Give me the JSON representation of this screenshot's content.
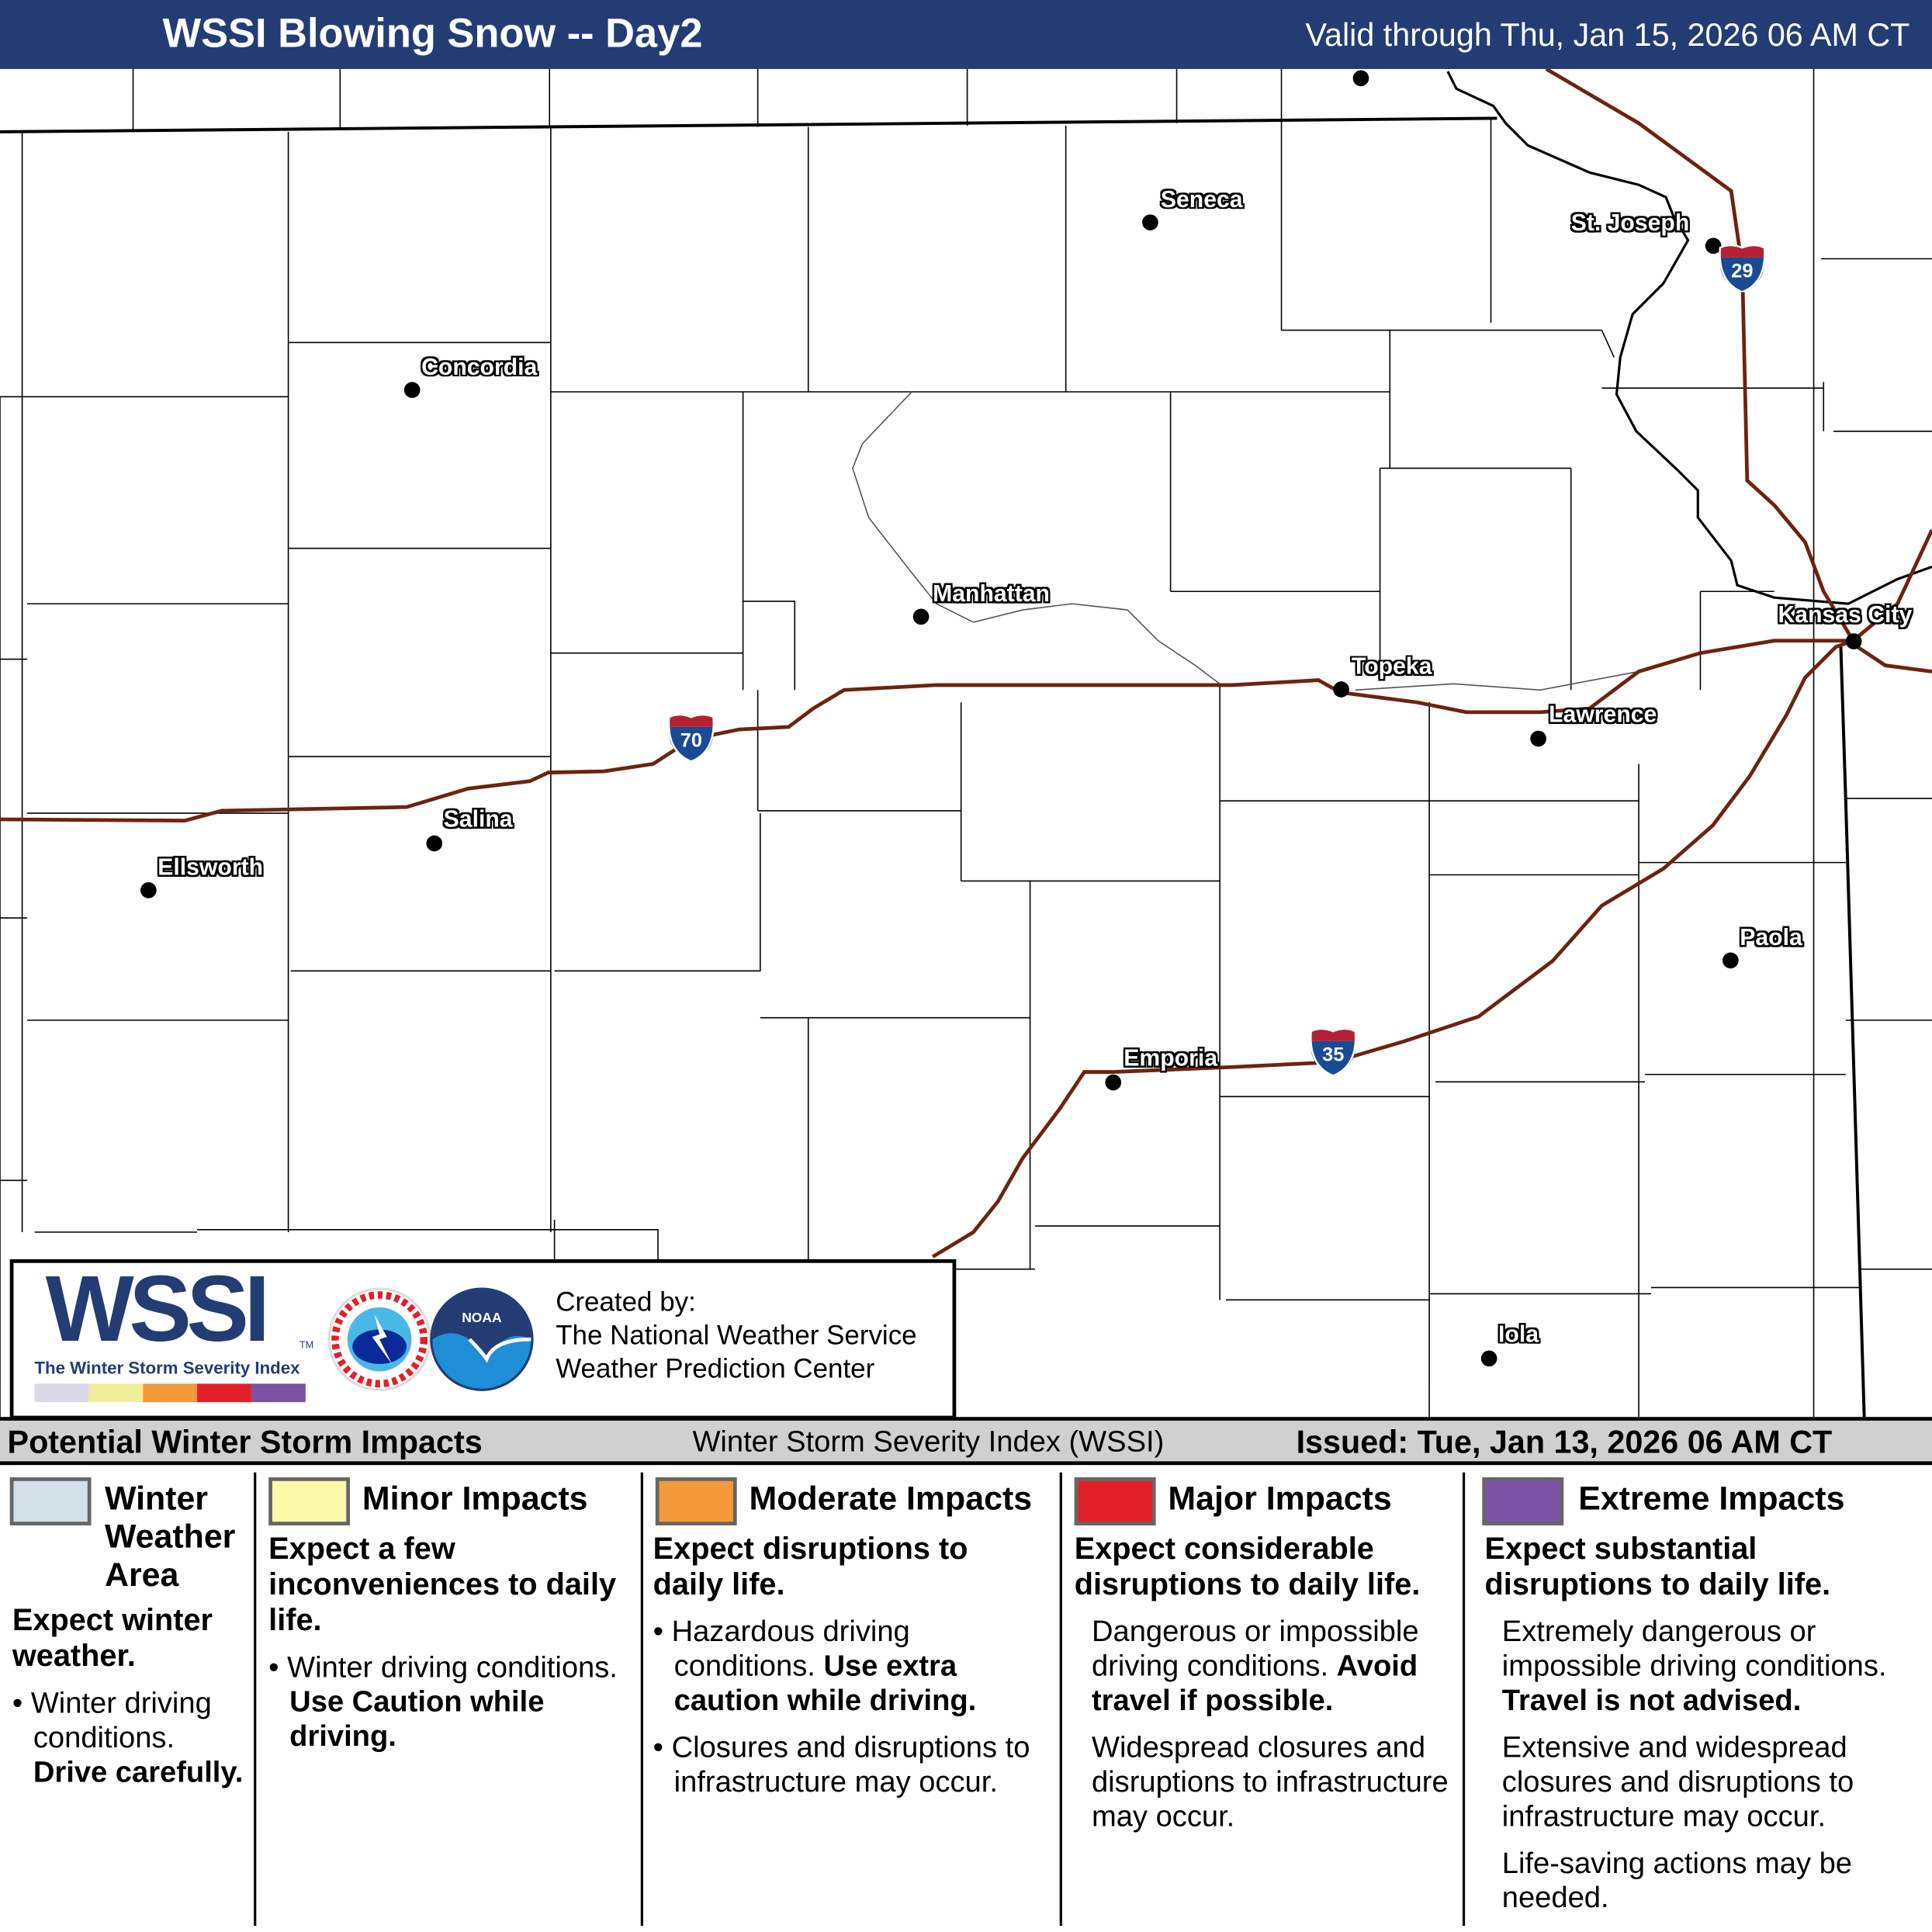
{
  "header": {
    "title": "WSSI Blowing Snow -- Day2",
    "valid": "Valid through Thu, Jan 15, 2026 06 AM CT"
  },
  "map": {
    "cities": [
      {
        "name": "Seneca"
      },
      {
        "name": "Concordia"
      },
      {
        "name": "Manhattan"
      },
      {
        "name": "Topeka"
      },
      {
        "name": "St. Joseph"
      },
      {
        "name": "Kansas City"
      },
      {
        "name": "Lawrence"
      },
      {
        "name": "Salina"
      },
      {
        "name": "Ellsworth"
      },
      {
        "name": "Paola"
      },
      {
        "name": "Emporia"
      },
      {
        "name": "Iola"
      }
    ],
    "interstates": [
      "70",
      "35",
      "29"
    ],
    "colors": {
      "highway": "#6b2410",
      "shield_blue": "#1a4a94",
      "shield_red": "#b22234"
    }
  },
  "logo": {
    "wordmark": "WSSI",
    "tagline": "The Winter Storm Severity Index",
    "created_by": "Created by:",
    "org1": "The National Weather Service",
    "org2": "Weather Prediction Center",
    "scale_colors": [
      "#d8d8e6",
      "#eeee9a",
      "#f59a38",
      "#e3202a",
      "#7b52a4"
    ]
  },
  "legend": {
    "title": "Potential Winter Storm Impacts",
    "index": "Winter Storm Severity Index (WSSI)",
    "issued": "Issued: Tue, Jan 13, 2026 06 AM CT",
    "categories": [
      {
        "label": "Winter Weather Area",
        "color": "#d4e0e8",
        "headline": "Expect winter weather.",
        "body": "Winter driving conditions.",
        "bold": "Drive carefully."
      },
      {
        "label": "Minor Impacts",
        "color": "#fafaa8",
        "headline": "Expect a few inconveniences to daily life.",
        "body": "Winter driving conditions.",
        "bold": "Use Caution while driving."
      },
      {
        "label": "Moderate Impacts",
        "color": "#f59a38",
        "headline": "Expect disruptions to daily life.",
        "body": "Hazardous driving conditions.",
        "bold": "Use extra caution while driving.",
        "body2": "Closures and disruptions to infrastructure may occur."
      },
      {
        "label": "Major Impacts",
        "color": "#e3202a",
        "headline": "Expect considerable disruptions to daily life.",
        "body": "Dangerous or impossible driving conditions.",
        "bold": "Avoid travel if possible.",
        "body2": "Widespread closures and disruptions to infrastructure may occur."
      },
      {
        "label": "Extreme Impacts",
        "color": "#7b52a4",
        "headline": "Expect substantial disruptions to daily life.",
        "body": "Extremely dangerous or impossible driving conditions.",
        "bold": "Travel is not advised.",
        "body2": "Extensive and widespread closures and disruptions to infrastructure may occur.",
        "body3": "Life-saving actions may be needed."
      }
    ]
  }
}
